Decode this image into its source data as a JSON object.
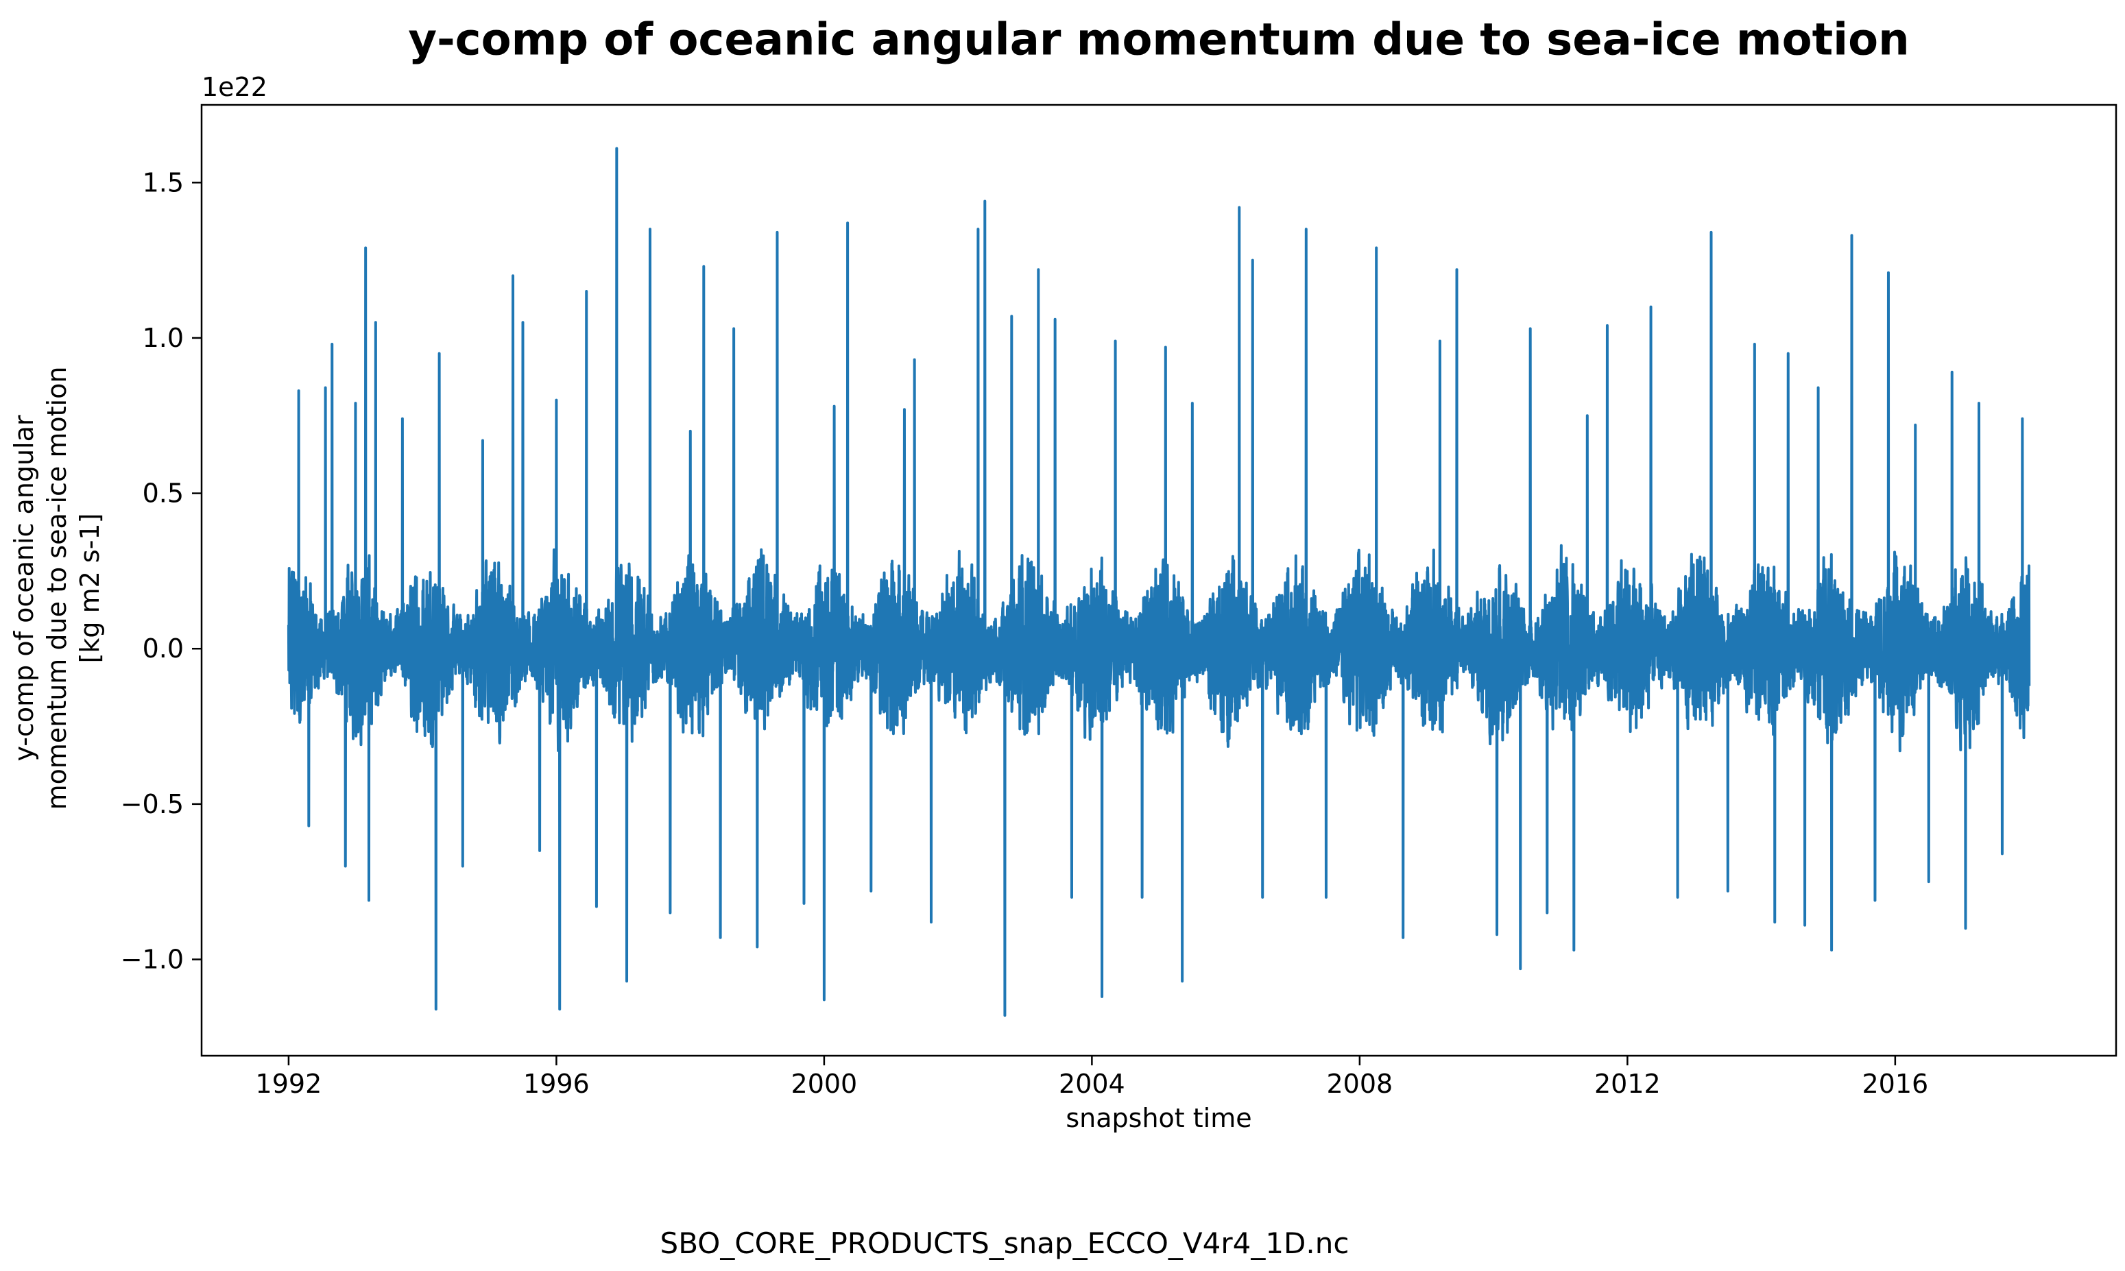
{
  "chart_data": {
    "type": "line",
    "title": "y-comp of oceanic angular momentum due to sea-ice motion",
    "xlabel": "snapshot time",
    "ylabel_lines": [
      "y-comp of oceanic angular",
      "momentum due to sea-ice motion",
      "[kg m2 s-1]"
    ],
    "y_offset_label": "1e22",
    "footer": "SBO_CORE_PRODUCTS_snap_ECCO_V4r4_1D.nc",
    "xlim": [
      1990.7,
      2019.3
    ],
    "ylim": [
      -1.31,
      1.75
    ],
    "x_ticks": [
      1992,
      1996,
      2000,
      2004,
      2008,
      2012,
      2016
    ],
    "x_tick_labels": [
      "1992",
      "1996",
      "2000",
      "2004",
      "2008",
      "2012",
      "2016"
    ],
    "y_ticks": [
      -1.0,
      -0.5,
      0.0,
      0.5,
      1.0,
      1.5
    ],
    "y_tick_labels": [
      "−1.0",
      "−0.5",
      "0.0",
      "0.5",
      "1.0",
      "1.5"
    ],
    "grid": false,
    "series": [
      {
        "color": "#1f77b4",
        "x_start": 1992.0,
        "x_end": 2018.0,
        "noise_envelope": {
          "typical_amplitude": 0.35,
          "min": -0.5,
          "max": 0.6
        },
        "spikes": [
          {
            "x": 1992.15,
            "y": 0.83
          },
          {
            "x": 1992.3,
            "y": -0.57
          },
          {
            "x": 1992.55,
            "y": 0.84
          },
          {
            "x": 1992.65,
            "y": 0.98
          },
          {
            "x": 1992.85,
            "y": -0.7
          },
          {
            "x": 1993.0,
            "y": 0.79
          },
          {
            "x": 1993.15,
            "y": 1.29
          },
          {
            "x": 1993.2,
            "y": -0.81
          },
          {
            "x": 1993.3,
            "y": 1.05
          },
          {
            "x": 1993.7,
            "y": 0.74
          },
          {
            "x": 1994.2,
            "y": -1.16
          },
          {
            "x": 1994.25,
            "y": 0.95
          },
          {
            "x": 1994.6,
            "y": -0.7
          },
          {
            "x": 1994.9,
            "y": 0.67
          },
          {
            "x": 1995.35,
            "y": 1.2
          },
          {
            "x": 1995.5,
            "y": 1.05
          },
          {
            "x": 1995.75,
            "y": -0.65
          },
          {
            "x": 1996.0,
            "y": 0.8
          },
          {
            "x": 1996.05,
            "y": -1.16
          },
          {
            "x": 1996.45,
            "y": 1.15
          },
          {
            "x": 1996.6,
            "y": -0.83
          },
          {
            "x": 1996.9,
            "y": 1.61
          },
          {
            "x": 1997.05,
            "y": -1.07
          },
          {
            "x": 1997.4,
            "y": 1.35
          },
          {
            "x": 1997.7,
            "y": -0.85
          },
          {
            "x": 1998.0,
            "y": 0.7
          },
          {
            "x": 1998.2,
            "y": 1.23
          },
          {
            "x": 1998.45,
            "y": -0.93
          },
          {
            "x": 1998.65,
            "y": 1.03
          },
          {
            "x": 1999.0,
            "y": -0.96
          },
          {
            "x": 1999.3,
            "y": 1.34
          },
          {
            "x": 1999.7,
            "y": -0.82
          },
          {
            "x": 2000.0,
            "y": -1.13
          },
          {
            "x": 2000.15,
            "y": 0.78
          },
          {
            "x": 2000.35,
            "y": 1.37
          },
          {
            "x": 2000.7,
            "y": -0.78
          },
          {
            "x": 2001.2,
            "y": 0.77
          },
          {
            "x": 2001.35,
            "y": 0.93
          },
          {
            "x": 2001.6,
            "y": -0.88
          },
          {
            "x": 2002.3,
            "y": 1.35
          },
          {
            "x": 2002.4,
            "y": 1.44
          },
          {
            "x": 2002.7,
            "y": -1.18
          },
          {
            "x": 2002.8,
            "y": 1.07
          },
          {
            "x": 2003.2,
            "y": 1.22
          },
          {
            "x": 2003.45,
            "y": 1.06
          },
          {
            "x": 2003.7,
            "y": -0.8
          },
          {
            "x": 2004.15,
            "y": -1.12
          },
          {
            "x": 2004.35,
            "y": 0.99
          },
          {
            "x": 2004.75,
            "y": -0.8
          },
          {
            "x": 2005.1,
            "y": 0.97
          },
          {
            "x": 2005.35,
            "y": -1.07
          },
          {
            "x": 2005.5,
            "y": 0.79
          },
          {
            "x": 2006.2,
            "y": 1.42
          },
          {
            "x": 2006.4,
            "y": 1.25
          },
          {
            "x": 2006.55,
            "y": -0.8
          },
          {
            "x": 2007.2,
            "y": 1.35
          },
          {
            "x": 2007.5,
            "y": -0.8
          },
          {
            "x": 2008.25,
            "y": 1.29
          },
          {
            "x": 2008.65,
            "y": -0.93
          },
          {
            "x": 2009.2,
            "y": 0.99
          },
          {
            "x": 2009.45,
            "y": 1.22
          },
          {
            "x": 2010.05,
            "y": -0.92
          },
          {
            "x": 2010.4,
            "y": -1.03
          },
          {
            "x": 2010.55,
            "y": 1.03
          },
          {
            "x": 2010.8,
            "y": -0.85
          },
          {
            "x": 2011.2,
            "y": -0.97
          },
          {
            "x": 2011.4,
            "y": 0.75
          },
          {
            "x": 2011.7,
            "y": 1.04
          },
          {
            "x": 2012.35,
            "y": 1.1
          },
          {
            "x": 2012.75,
            "y": -0.8
          },
          {
            "x": 2013.25,
            "y": 1.34
          },
          {
            "x": 2013.5,
            "y": -0.78
          },
          {
            "x": 2013.9,
            "y": 0.98
          },
          {
            "x": 2014.2,
            "y": -0.88
          },
          {
            "x": 2014.4,
            "y": 0.95
          },
          {
            "x": 2014.65,
            "y": -0.89
          },
          {
            "x": 2014.85,
            "y": 0.84
          },
          {
            "x": 2015.05,
            "y": -0.97
          },
          {
            "x": 2015.35,
            "y": 1.33
          },
          {
            "x": 2015.7,
            "y": -0.81
          },
          {
            "x": 2015.9,
            "y": 1.21
          },
          {
            "x": 2016.3,
            "y": 0.72
          },
          {
            "x": 2016.5,
            "y": -0.75
          },
          {
            "x": 2016.85,
            "y": 0.89
          },
          {
            "x": 2017.05,
            "y": -0.9
          },
          {
            "x": 2017.25,
            "y": 0.79
          },
          {
            "x": 2017.6,
            "y": -0.66
          },
          {
            "x": 2017.9,
            "y": 0.74
          },
          {
            "x": 2018.0,
            "y": -0.12
          }
        ]
      }
    ]
  }
}
